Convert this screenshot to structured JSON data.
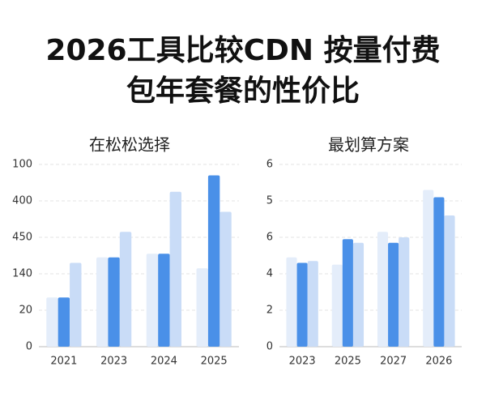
{
  "title_lines": [
    "2026工具比较CDN 按量付费",
    "包年套餐的性价比"
  ],
  "chart_data": [
    {
      "type": "bar",
      "title": "在松松选择",
      "categories": [
        "2021",
        "2023",
        "2024",
        "2025"
      ],
      "series": [
        {
          "color": "#e4edfa",
          "values": [
            1.35,
            2.45,
            2.55,
            2.15
          ]
        },
        {
          "color": "#4a90e8",
          "values": [
            1.35,
            2.45,
            2.55,
            4.7
          ]
        },
        {
          "color": "#c9dcf7",
          "values": [
            2.3,
            3.15,
            4.25,
            3.7
          ]
        }
      ],
      "ylim": [
        0,
        5
      ],
      "yticks": [
        0,
        {
          "value": 1,
          "label": "20"
        },
        {
          "value": 2,
          "label": "140"
        },
        {
          "value": 3,
          "label": "450"
        },
        {
          "value": 4,
          "label": "400"
        },
        {
          "value": 5,
          "label": "100"
        }
      ],
      "grid": true
    },
    {
      "type": "bar",
      "title": "最划算方案",
      "categories": [
        "2023",
        "2025",
        "2027",
        "2026"
      ],
      "series": [
        {
          "color": "#e4edfa",
          "values": [
            2.45,
            2.25,
            3.15,
            4.3
          ]
        },
        {
          "color": "#4a90e8",
          "values": [
            2.3,
            2.95,
            2.85,
            4.1
          ]
        },
        {
          "color": "#c9dcf7",
          "values": [
            2.35,
            2.85,
            3.0,
            3.6
          ]
        }
      ],
      "ylim": [
        0,
        5
      ],
      "yticks": [
        0,
        {
          "value": 1,
          "label": "2"
        },
        {
          "value": 2,
          "label": "4"
        },
        {
          "value": 3,
          "label": "6"
        },
        {
          "value": 4,
          "label": "5"
        },
        {
          "value": 5,
          "label": "6"
        }
      ],
      "grid": true
    }
  ]
}
